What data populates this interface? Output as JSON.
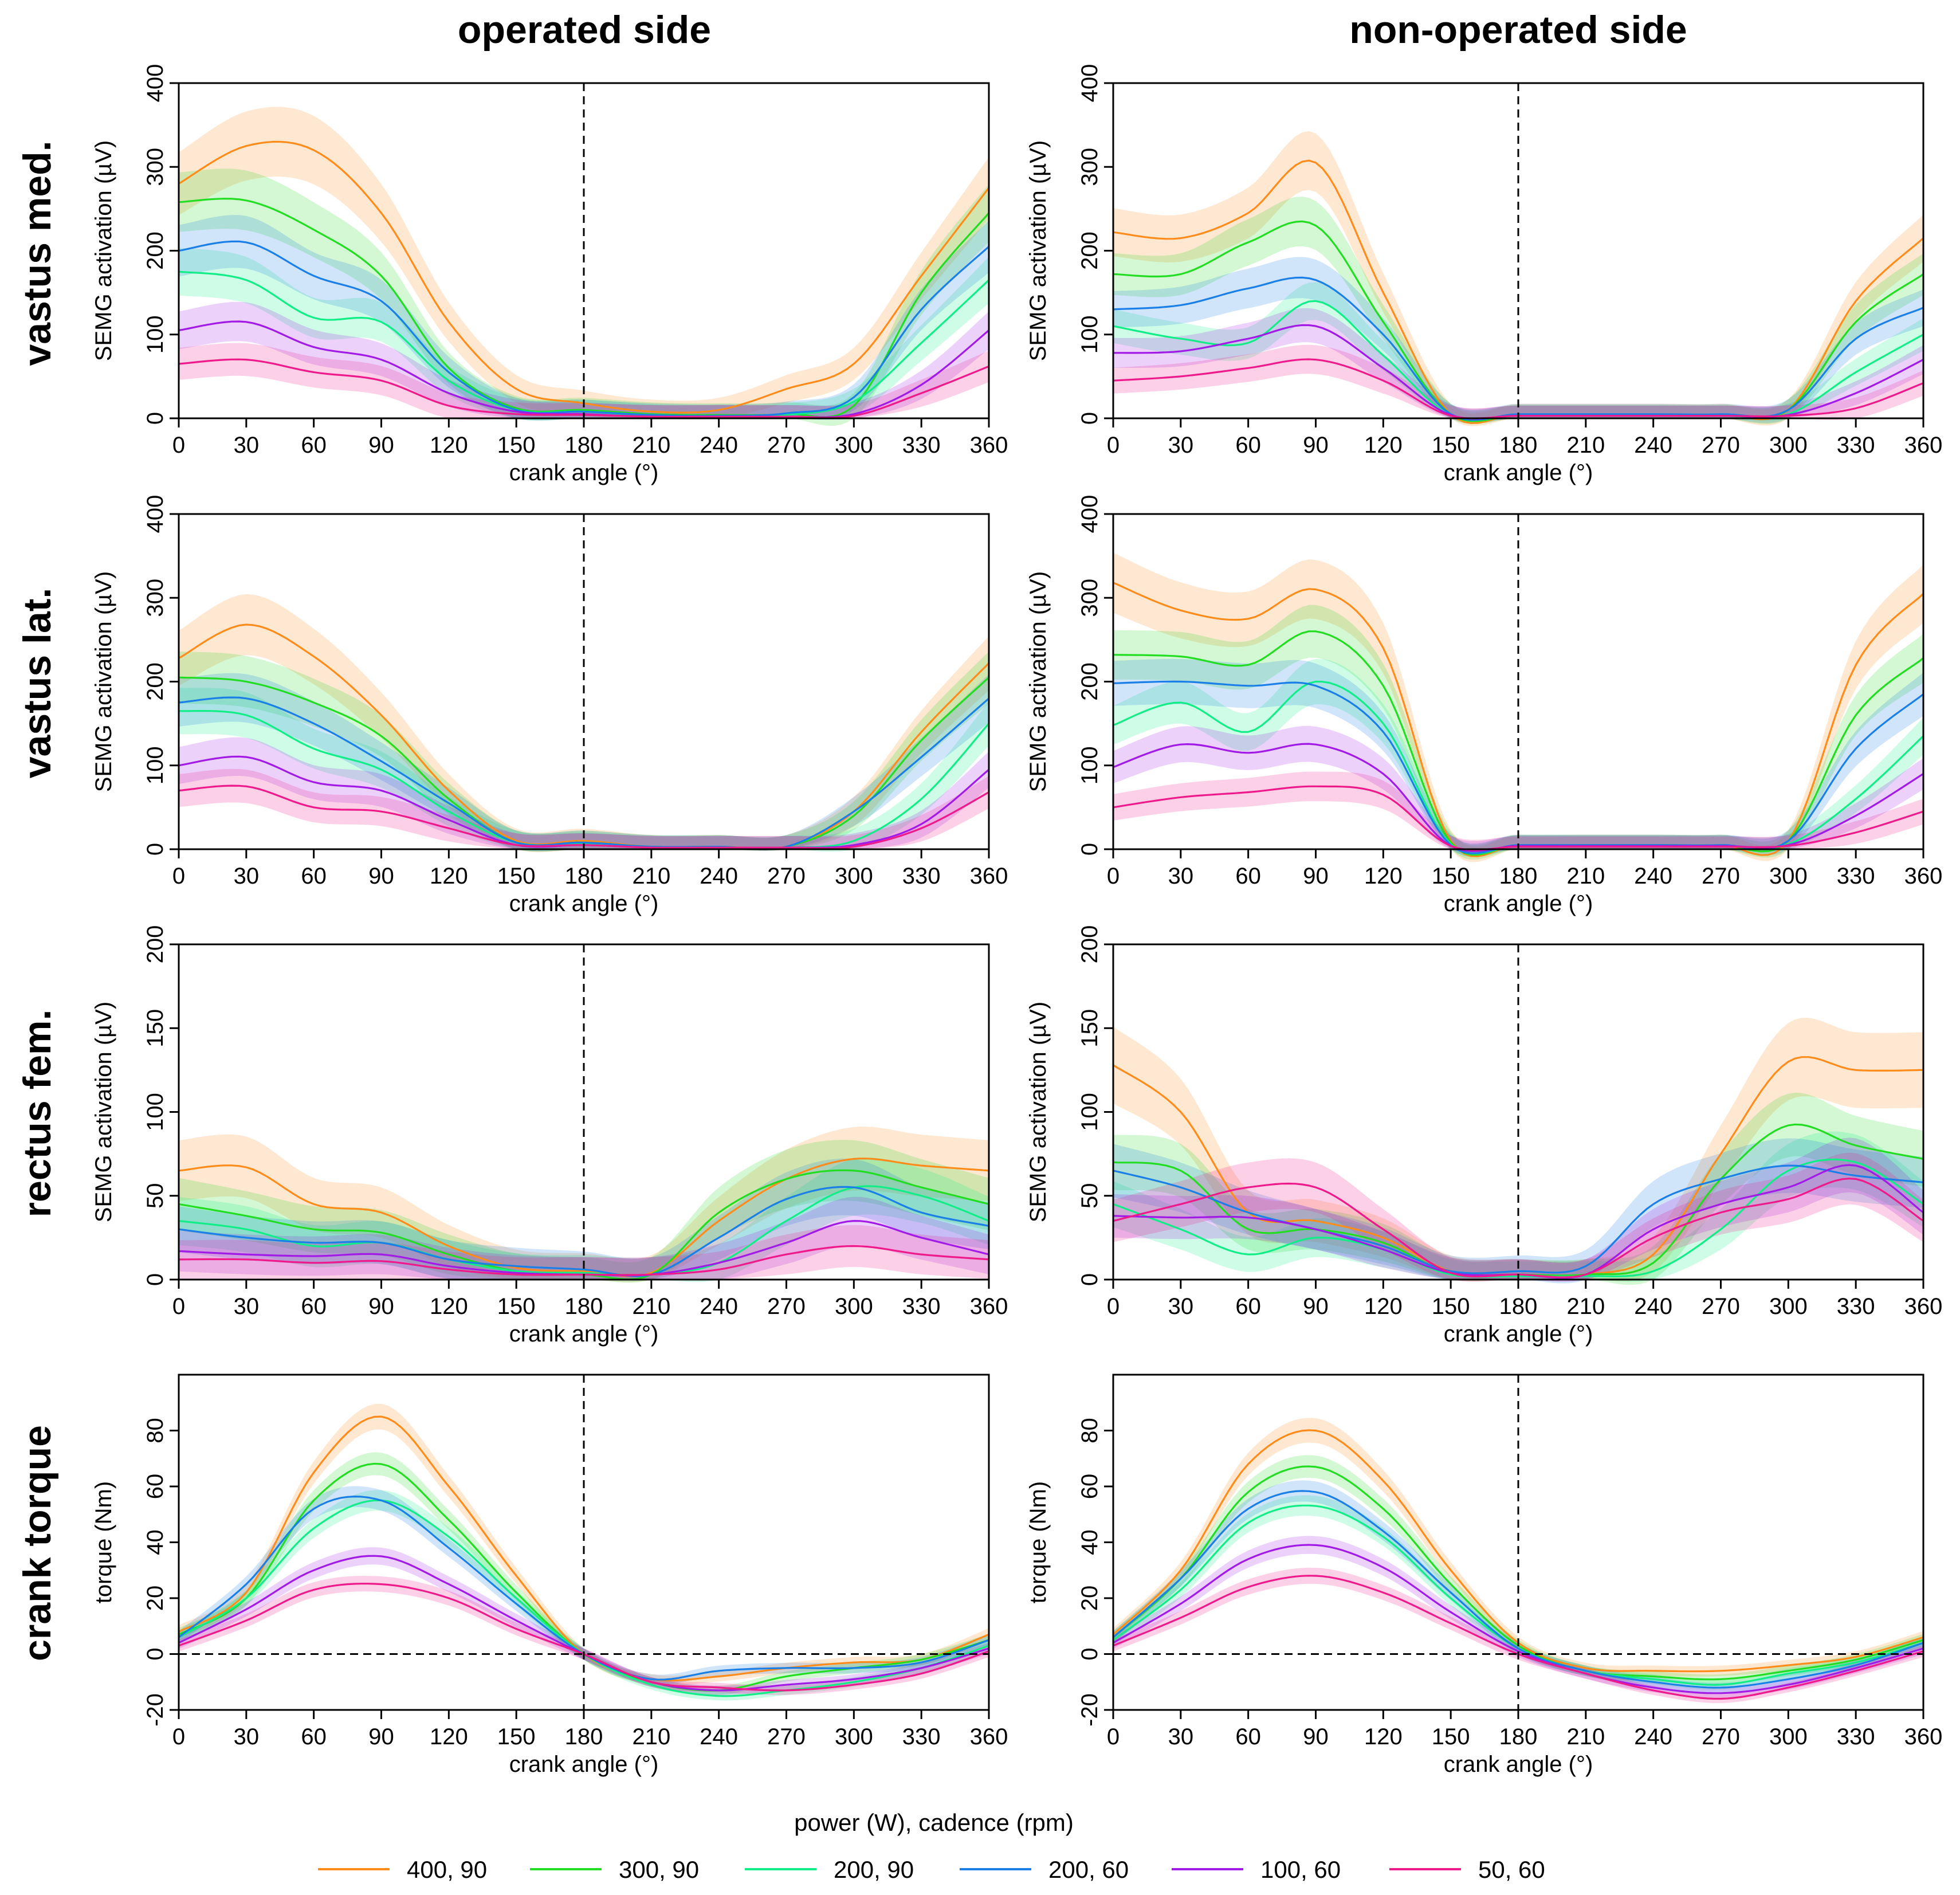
{
  "figure": {
    "col_titles": [
      "operated side",
      "non-operated side"
    ],
    "row_labels": [
      "vastus med.",
      "vastus lat.",
      "rectus fem.",
      "crank torque"
    ],
    "legend_title": "power (W), cadence (rpm)"
  },
  "chart_data": {
    "type": "line",
    "x": [
      0,
      30,
      60,
      90,
      120,
      150,
      180,
      210,
      240,
      270,
      300,
      330,
      360
    ],
    "xlim": [
      0,
      360
    ],
    "xticks": [
      0,
      30,
      60,
      90,
      120,
      150,
      180,
      210,
      240,
      270,
      300,
      330,
      360
    ],
    "xlabel": "crank angle (°)",
    "vline": 180,
    "series_defs": [
      {
        "name": "400, 90",
        "color": "#ff8c1a"
      },
      {
        "name": "300, 90",
        "color": "#22dd22"
      },
      {
        "name": "200, 90",
        "color": "#11ee88"
      },
      {
        "name": "200, 60",
        "color": "#1a7fe6"
      },
      {
        "name": "100, 60",
        "color": "#a21ae6"
      },
      {
        "name": "50, 60",
        "color": "#ee1a8c"
      }
    ],
    "panels": [
      {
        "row": 0,
        "col": 0,
        "ylabel": "SEMG activation (µV)",
        "ylim": [
          0,
          400
        ],
        "yticks": [
          0,
          100,
          200,
          300,
          400
        ],
        "band": 0.17,
        "zero_line": false,
        "series": [
          [
            280,
            325,
            320,
            245,
            115,
            35,
            18,
            8,
            10,
            35,
            65,
            170,
            275
          ],
          [
            258,
            260,
            225,
            170,
            60,
            12,
            10,
            5,
            4,
            5,
            15,
            150,
            245
          ],
          [
            175,
            165,
            120,
            115,
            45,
            10,
            8,
            3,
            2,
            4,
            20,
            90,
            165
          ],
          [
            200,
            210,
            170,
            140,
            55,
            10,
            8,
            4,
            3,
            6,
            25,
            130,
            205
          ],
          [
            105,
            115,
            85,
            70,
            30,
            8,
            5,
            2,
            2,
            2,
            5,
            40,
            105
          ],
          [
            65,
            70,
            55,
            45,
            15,
            5,
            4,
            2,
            2,
            2,
            3,
            30,
            62
          ]
        ]
      },
      {
        "row": 0,
        "col": 1,
        "ylabel": "SEMG activation (µV)",
        "ylim": [
          0,
          400
        ],
        "yticks": [
          0,
          100,
          200,
          300,
          400
        ],
        "band": 0.15,
        "zero_line": false,
        "series": [
          [
            222,
            215,
            245,
            305,
            150,
            5,
            5,
            5,
            5,
            5,
            10,
            140,
            215
          ],
          [
            172,
            172,
            210,
            230,
            115,
            5,
            4,
            4,
            4,
            4,
            10,
            115,
            172
          ],
          [
            110,
            95,
            90,
            140,
            75,
            4,
            3,
            3,
            3,
            3,
            5,
            55,
            100
          ],
          [
            130,
            135,
            155,
            165,
            100,
            5,
            5,
            5,
            5,
            5,
            10,
            95,
            132
          ],
          [
            78,
            80,
            95,
            110,
            60,
            4,
            3,
            3,
            3,
            3,
            4,
            30,
            70
          ],
          [
            45,
            50,
            60,
            70,
            45,
            3,
            3,
            3,
            3,
            3,
            3,
            12,
            42
          ]
        ]
      },
      {
        "row": 1,
        "col": 0,
        "ylabel": "SEMG activation (µV)",
        "ylim": [
          0,
          400
        ],
        "yticks": [
          0,
          100,
          200,
          300,
          400
        ],
        "band": 0.17,
        "zero_line": false,
        "series": [
          [
            228,
            268,
            230,
            160,
            70,
            10,
            10,
            3,
            3,
            3,
            45,
            140,
            222
          ],
          [
            205,
            200,
            175,
            135,
            60,
            8,
            8,
            3,
            3,
            3,
            40,
            130,
            205
          ],
          [
            165,
            160,
            120,
            95,
            45,
            8,
            6,
            2,
            2,
            2,
            10,
            60,
            150
          ],
          [
            175,
            180,
            150,
            105,
            55,
            8,
            8,
            3,
            3,
            3,
            45,
            110,
            180
          ],
          [
            100,
            110,
            80,
            70,
            35,
            5,
            5,
            2,
            2,
            2,
            5,
            30,
            95
          ],
          [
            70,
            75,
            50,
            45,
            25,
            5,
            5,
            2,
            2,
            2,
            3,
            25,
            68
          ]
        ]
      },
      {
        "row": 1,
        "col": 1,
        "ylabel": "SEMG activation (µV)",
        "ylim": [
          0,
          400
        ],
        "yticks": [
          0,
          100,
          200,
          300,
          400
        ],
        "band": 0.15,
        "zero_line": false,
        "series": [
          [
            318,
            285,
            275,
            310,
            240,
            10,
            5,
            5,
            5,
            5,
            10,
            220,
            305
          ],
          [
            232,
            230,
            220,
            260,
            195,
            8,
            5,
            5,
            5,
            5,
            10,
            160,
            228
          ],
          [
            148,
            175,
            140,
            200,
            150,
            6,
            4,
            4,
            4,
            4,
            6,
            60,
            135
          ],
          [
            198,
            200,
            195,
            195,
            140,
            5,
            5,
            5,
            5,
            5,
            10,
            120,
            185
          ],
          [
            98,
            125,
            115,
            125,
            90,
            4,
            4,
            4,
            4,
            4,
            5,
            40,
            90
          ],
          [
            50,
            62,
            68,
            75,
            65,
            4,
            3,
            3,
            3,
            3,
            4,
            20,
            45
          ]
        ]
      },
      {
        "row": 2,
        "col": 0,
        "ylabel": "SEMG activation (µV)",
        "ylim": [
          0,
          200
        ],
        "yticks": [
          0,
          50,
          100,
          150,
          200
        ],
        "band": 0.25,
        "zero_line": false,
        "series": [
          [
            65,
            67,
            45,
            40,
            20,
            7,
            5,
            4,
            35,
            60,
            72,
            68,
            65
          ],
          [
            45,
            38,
            30,
            28,
            15,
            5,
            3,
            3,
            40,
            60,
            65,
            55,
            45
          ],
          [
            35,
            30,
            20,
            22,
            12,
            5,
            4,
            3,
            10,
            35,
            55,
            50,
            35
          ],
          [
            30,
            25,
            22,
            22,
            12,
            8,
            6,
            3,
            25,
            48,
            55,
            40,
            32
          ],
          [
            17,
            15,
            14,
            15,
            8,
            4,
            3,
            3,
            10,
            22,
            35,
            25,
            15
          ],
          [
            12,
            12,
            10,
            11,
            6,
            3,
            3,
            3,
            6,
            15,
            20,
            15,
            12
          ]
        ]
      },
      {
        "row": 2,
        "col": 1,
        "ylabel": "SEMG activation (µV)",
        "ylim": [
          0,
          200
        ],
        "yticks": [
          0,
          50,
          100,
          150,
          200
        ],
        "band": 0.22,
        "zero_line": false,
        "series": [
          [
            128,
            100,
            40,
            35,
            25,
            5,
            3,
            3,
            15,
            75,
            130,
            125,
            125
          ],
          [
            70,
            65,
            30,
            30,
            22,
            4,
            3,
            3,
            10,
            60,
            92,
            80,
            72
          ],
          [
            45,
            30,
            15,
            25,
            18,
            3,
            2,
            2,
            5,
            30,
            65,
            70,
            45
          ],
          [
            65,
            55,
            40,
            30,
            20,
            5,
            5,
            8,
            45,
            60,
            68,
            62,
            58
          ],
          [
            38,
            37,
            37,
            30,
            18,
            4,
            3,
            3,
            30,
            45,
            55,
            68,
            40
          ],
          [
            35,
            45,
            55,
            55,
            30,
            4,
            3,
            3,
            25,
            40,
            48,
            60,
            35
          ]
        ]
      },
      {
        "row": 3,
        "col": 0,
        "ylabel": "torque (Nm)",
        "ylim": [
          -20,
          100
        ],
        "yticks": [
          -20,
          0,
          20,
          40,
          60,
          80
        ],
        "band": 0.06,
        "zero_line": true,
        "series": [
          [
            8,
            22,
            65,
            85,
            60,
            28,
            0,
            -9,
            -8,
            -5,
            -3,
            -2,
            7
          ],
          [
            7,
            20,
            55,
            68,
            48,
            22,
            0,
            -10,
            -13,
            -8,
            -5,
            -2,
            5
          ],
          [
            6,
            20,
            45,
            55,
            42,
            20,
            0,
            -11,
            -15,
            -13,
            -10,
            -5,
            3
          ],
          [
            6,
            25,
            52,
            55,
            38,
            18,
            0,
            -9,
            -6,
            -5,
            -5,
            -3,
            5
          ],
          [
            4,
            16,
            30,
            35,
            25,
            12,
            0,
            -10,
            -13,
            -11,
            -9,
            -5,
            2
          ],
          [
            3,
            12,
            23,
            25,
            20,
            9,
            0,
            -10,
            -12,
            -13,
            -11,
            -7,
            1
          ]
        ]
      },
      {
        "row": 3,
        "col": 1,
        "ylabel": "torque (Nm)",
        "ylim": [
          -20,
          100
        ],
        "yticks": [
          -20,
          0,
          20,
          40,
          60,
          80
        ],
        "band": 0.06,
        "zero_line": true,
        "series": [
          [
            7,
            30,
            68,
            80,
            62,
            30,
            4,
            -5,
            -6,
            -6,
            -4,
            -1,
            6
          ],
          [
            6,
            27,
            58,
            67,
            52,
            25,
            3,
            -6,
            -8,
            -9,
            -6,
            -2,
            5
          ],
          [
            5,
            23,
            47,
            53,
            42,
            20,
            2,
            -6,
            -9,
            -11,
            -7,
            -3,
            4
          ],
          [
            6,
            27,
            52,
            58,
            44,
            22,
            2,
            -6,
            -10,
            -12,
            -9,
            -4,
            4
          ],
          [
            4,
            18,
            34,
            39,
            31,
            15,
            1,
            -7,
            -12,
            -14,
            -11,
            -5,
            2
          ],
          [
            3,
            13,
            24,
            28,
            22,
            11,
            0,
            -7,
            -13,
            -16,
            -12,
            -6,
            1
          ]
        ]
      }
    ]
  }
}
